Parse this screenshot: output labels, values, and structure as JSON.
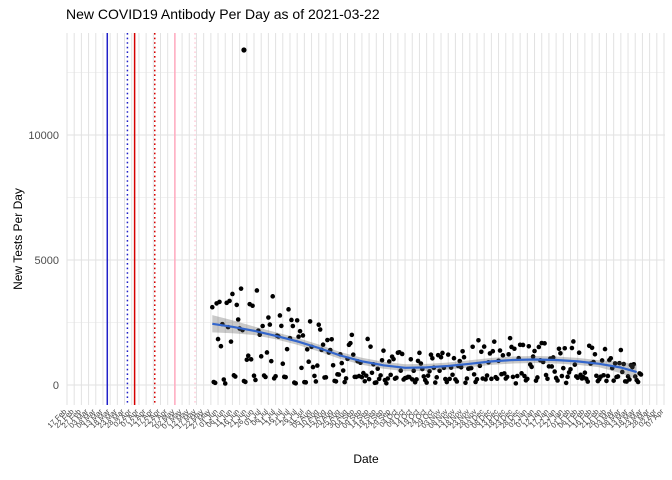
{
  "chart_data": {
    "type": "scatter",
    "title": "New COVID19 Antibody Per Day as of 2021-03-22",
    "xlabel": "Date",
    "ylabel": "New Tests Per Day",
    "legend": "none",
    "grid": true,
    "x_axis": {
      "tick_interval_days": 5,
      "axis_start_label": "17 Feb",
      "axis_end_label": "07 Apr",
      "domain_days": [
        0,
        415
      ],
      "tick_labels": [
        "17 Feb",
        "22 Feb",
        "27 Feb",
        "03 Mar",
        "08 Mar",
        "13 Mar",
        "18 Mar",
        "23 Mar",
        "28 Mar",
        "02 Apr",
        "07 Apr",
        "12 Apr",
        "17 Apr",
        "22 Apr",
        "27 Apr",
        "02 May",
        "07 May",
        "12 May",
        "17 May",
        "22 May",
        "27 May",
        "01 Jun",
        "06 Jun",
        "11 Jun",
        "16 Jun",
        "21 Jun",
        "26 Jun",
        "01 Jul",
        "06 Jul",
        "11 Jul",
        "16 Jul",
        "21 Jul",
        "26 Jul",
        "31 Jul",
        "05 Aug",
        "10 Aug",
        "15 Aug",
        "20 Aug",
        "25 Aug",
        "30 Aug",
        "04 Sep",
        "09 Sep",
        "14 Sep",
        "19 Sep",
        "24 Sep",
        "29 Sep",
        "04 Oct",
        "09 Oct",
        "14 Oct",
        "19 Oct",
        "24 Oct",
        "29 Oct",
        "03 Nov",
        "08 Nov",
        "13 Nov",
        "18 Nov",
        "23 Nov",
        "28 Nov",
        "03 Dec",
        "08 Dec",
        "13 Dec",
        "18 Dec",
        "23 Dec",
        "28 Dec",
        "02 Jan",
        "07 Jan",
        "12 Jan",
        "17 Jan",
        "22 Jan",
        "27 Jan",
        "01 Feb",
        "06 Feb",
        "11 Feb",
        "16 Feb",
        "21 Feb",
        "26 Feb",
        "03 Mar",
        "08 Mar",
        "13 Mar",
        "18 Mar",
        "23 Mar",
        "28 Mar",
        "02 Apr",
        "07 Apr"
      ]
    },
    "y_axis": {
      "tick_values": [
        0,
        5000,
        10000
      ],
      "tick_labels": [
        "0",
        "5000",
        "10000"
      ],
      "minor_gridlines": [
        2500,
        7500,
        12500
      ],
      "ylim": [
        -800,
        14080
      ]
    },
    "vlines": [
      {
        "day_offset": 28,
        "color": "#2020C8",
        "style": "solid"
      },
      {
        "day_offset": 42,
        "color": "#2020C8",
        "style": "dotted"
      },
      {
        "day_offset": 47,
        "color": "#D40000",
        "style": "solid"
      },
      {
        "day_offset": 61,
        "color": "#D40000",
        "style": "dotted"
      },
      {
        "day_offset": 75,
        "color": "#FFA9BE",
        "style": "solid"
      },
      {
        "day_offset": 89,
        "color": "#FFCDDA",
        "style": "dotted"
      }
    ],
    "smooth": {
      "color": "#3366CC",
      "ribbon_color": "#5A5A5A",
      "ribbon_opacity": 0.32,
      "trend_keypoints": [
        [
          101,
          2450
        ],
        [
          115,
          2330
        ],
        [
          130,
          2170
        ],
        [
          145,
          1970
        ],
        [
          160,
          1750
        ],
        [
          175,
          1480
        ],
        [
          190,
          1180
        ],
        [
          205,
          950
        ],
        [
          220,
          790
        ],
        [
          235,
          690
        ],
        [
          250,
          705
        ],
        [
          265,
          760
        ],
        [
          280,
          850
        ],
        [
          295,
          945
        ],
        [
          310,
          1000
        ],
        [
          325,
          1020
        ],
        [
          340,
          1000
        ],
        [
          355,
          945
        ],
        [
          370,
          850
        ],
        [
          385,
          700
        ],
        [
          396,
          520
        ]
      ]
    },
    "scatter": {
      "point_color": "#000000",
      "point_radius": 2.3,
      "start_day": 101,
      "end_day": 399,
      "low_band": [
        60,
        400
      ],
      "low_band_days_of_week": [
        4,
        5
      ],
      "outlier": {
        "day": 123,
        "value": 13400
      }
    },
    "style": {
      "background": "#FFFFFF",
      "grid_major_color": "#E2E2E2",
      "grid_minor_color": "#ECECEC",
      "axis_text_color": "#4D4D4D",
      "x_tick_text_color": "#454545"
    }
  }
}
